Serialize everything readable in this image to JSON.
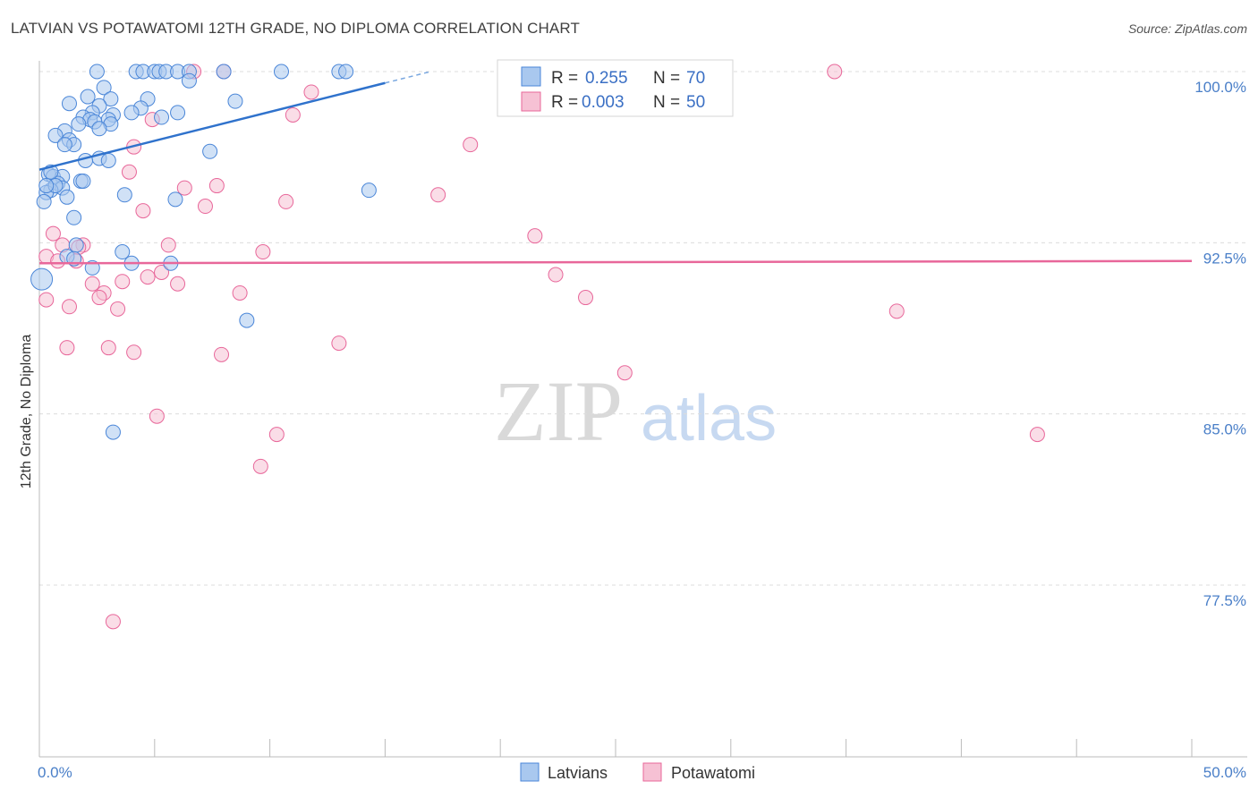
{
  "title": "LATVIAN VS POTAWATOMI 12TH GRADE, NO DIPLOMA CORRELATION CHART",
  "source": "Source: ZipAtlas.com",
  "watermark": {
    "zip": "ZIP",
    "atlas": "atlas"
  },
  "colors": {
    "blue": "#4a86d8",
    "blue_fill": "#a9c8ef",
    "pink": "#e8679a",
    "pink_fill": "#f6c1d4",
    "tick": "#4a7fc8"
  },
  "chart_data": {
    "type": "scatter",
    "title": "LATVIAN VS POTAWATOMI 12TH GRADE, NO DIPLOMA CORRELATION CHART",
    "ylabel": "12th Grade, No Diploma",
    "xlabel": "",
    "xlim": [
      0,
      50
    ],
    "ylim": [
      71.0,
      100.5
    ],
    "y_ticks": [
      100.0,
      92.5,
      85.0,
      77.5
    ],
    "y_tick_labels": [
      "100.0%",
      "92.5%",
      "85.0%",
      "77.5%"
    ],
    "x_tick_labels": [
      "0.0%",
      "50.0%"
    ],
    "legend": [
      {
        "r_label": "R =",
        "r_value": "0.255",
        "n_label": "N =",
        "n_value": "70"
      },
      {
        "r_label": "R =",
        "r_value": "0.003",
        "n_label": "N =",
        "n_value": "50"
      }
    ],
    "series": [
      {
        "name": "Latvians",
        "trend": {
          "x0": 0,
          "y0": 95.7,
          "x1": 15.0,
          "y1": 99.5,
          "dash_to_x": 17.0
        },
        "points": [
          [
            2.5,
            100
          ],
          [
            4.2,
            100
          ],
          [
            4.5,
            100
          ],
          [
            5.0,
            100
          ],
          [
            5.2,
            100
          ],
          [
            5.5,
            100
          ],
          [
            6.0,
            100
          ],
          [
            6.5,
            100
          ],
          [
            8.0,
            100
          ],
          [
            10.5,
            100
          ],
          [
            13.0,
            100
          ],
          [
            13.3,
            100
          ],
          [
            6.5,
            99.6
          ],
          [
            2.8,
            99.3
          ],
          [
            2.1,
            98.9
          ],
          [
            3.1,
            98.8
          ],
          [
            4.7,
            98.8
          ],
          [
            8.5,
            98.7
          ],
          [
            1.3,
            98.6
          ],
          [
            2.6,
            98.5
          ],
          [
            4.4,
            98.4
          ],
          [
            4.0,
            98.2
          ],
          [
            6.0,
            98.2
          ],
          [
            2.3,
            98.2
          ],
          [
            1.9,
            98.0
          ],
          [
            3.2,
            98.1
          ],
          [
            5.3,
            98.0
          ],
          [
            2.2,
            97.9
          ],
          [
            3.0,
            97.9
          ],
          [
            1.7,
            97.7
          ],
          [
            2.4,
            97.8
          ],
          [
            3.1,
            97.7
          ],
          [
            2.6,
            97.5
          ],
          [
            1.1,
            97.4
          ],
          [
            0.7,
            97.2
          ],
          [
            1.3,
            97.0
          ],
          [
            1.5,
            96.8
          ],
          [
            1.1,
            96.8
          ],
          [
            7.4,
            96.5
          ],
          [
            2.6,
            96.2
          ],
          [
            3.0,
            96.1
          ],
          [
            0.4,
            95.5
          ],
          [
            0.6,
            95.4
          ],
          [
            1.0,
            95.4
          ],
          [
            1.8,
            95.2
          ],
          [
            1.9,
            95.2
          ],
          [
            0.8,
            95.1
          ],
          [
            1.0,
            94.9
          ],
          [
            0.5,
            94.8
          ],
          [
            0.3,
            94.7
          ],
          [
            0.7,
            95.0
          ],
          [
            0.3,
            95.0
          ],
          [
            3.7,
            94.6
          ],
          [
            14.3,
            94.8
          ],
          [
            5.9,
            94.4
          ],
          [
            1.2,
            94.5
          ],
          [
            0.2,
            94.3
          ],
          [
            1.5,
            93.6
          ],
          [
            1.6,
            92.4
          ],
          [
            3.6,
            92.1
          ],
          [
            1.2,
            91.9
          ],
          [
            4.0,
            91.6
          ],
          [
            5.7,
            91.6
          ],
          [
            2.3,
            91.4
          ],
          [
            0.1,
            90.9
          ],
          [
            9.0,
            89.1
          ],
          [
            3.2,
            84.2
          ],
          [
            1.5,
            91.8
          ],
          [
            0.5,
            95.6
          ],
          [
            2.0,
            96.1
          ]
        ]
      },
      {
        "name": "Potawatomi",
        "trend": {
          "x0": 0,
          "y0": 91.6,
          "x1": 50,
          "y1": 91.7
        },
        "points": [
          [
            8.0,
            100
          ],
          [
            6.7,
            100
          ],
          [
            34.5,
            100
          ],
          [
            11.8,
            99.1
          ],
          [
            11.0,
            98.1
          ],
          [
            4.9,
            97.9
          ],
          [
            18.7,
            96.8
          ],
          [
            4.1,
            96.7
          ],
          [
            3.9,
            95.6
          ],
          [
            6.3,
            94.9
          ],
          [
            7.7,
            95.0
          ],
          [
            17.3,
            94.6
          ],
          [
            10.7,
            94.3
          ],
          [
            7.2,
            94.1
          ],
          [
            4.5,
            93.9
          ],
          [
            0.6,
            92.9
          ],
          [
            21.5,
            92.8
          ],
          [
            1.0,
            92.4
          ],
          [
            1.9,
            92.4
          ],
          [
            5.6,
            92.4
          ],
          [
            1.7,
            92.3
          ],
          [
            9.7,
            92.1
          ],
          [
            0.3,
            91.9
          ],
          [
            0.8,
            91.7
          ],
          [
            1.6,
            91.7
          ],
          [
            5.3,
            91.2
          ],
          [
            22.4,
            91.1
          ],
          [
            4.7,
            91.0
          ],
          [
            3.6,
            90.8
          ],
          [
            6.0,
            90.7
          ],
          [
            2.3,
            90.7
          ],
          [
            2.8,
            90.3
          ],
          [
            8.7,
            90.3
          ],
          [
            23.7,
            90.1
          ],
          [
            2.6,
            90.1
          ],
          [
            0.3,
            90.0
          ],
          [
            1.3,
            89.7
          ],
          [
            3.4,
            89.6
          ],
          [
            37.2,
            89.5
          ],
          [
            13.0,
            88.1
          ],
          [
            1.2,
            87.9
          ],
          [
            3.0,
            87.9
          ],
          [
            4.1,
            87.7
          ],
          [
            7.9,
            87.6
          ],
          [
            25.4,
            86.8
          ],
          [
            5.1,
            84.9
          ],
          [
            10.3,
            84.1
          ],
          [
            43.3,
            84.1
          ],
          [
            9.6,
            82.7
          ],
          [
            3.2,
            75.9
          ]
        ]
      }
    ]
  },
  "bottom_legend": [
    {
      "label": "Latvians"
    },
    {
      "label": "Potawatomi"
    }
  ]
}
